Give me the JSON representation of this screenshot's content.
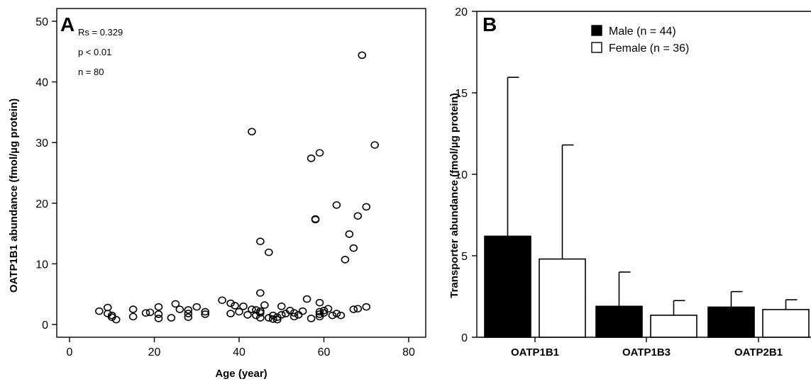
{
  "chart_data": [
    {
      "panel": "A",
      "type": "scatter",
      "xlabel": "Age (year)",
      "ylabel": "OATP1B1 abundance (fmol/µg protein)",
      "xlim": [
        0,
        80
      ],
      "ylim": [
        0,
        50
      ],
      "xticks": [
        "0",
        "20",
        "40",
        "60",
        "80"
      ],
      "yticks": [
        "0",
        "10",
        "20",
        "30",
        "40",
        "50"
      ],
      "annotations": [
        "Rs = 0.329",
        "p < 0.01",
        "n = 80"
      ],
      "points": [
        {
          "x": 7,
          "y": 2.2
        },
        {
          "x": 9,
          "y": 2.8
        },
        {
          "x": 9,
          "y": 1.8
        },
        {
          "x": 10,
          "y": 1.5
        },
        {
          "x": 10,
          "y": 1.2
        },
        {
          "x": 11,
          "y": 0.8
        },
        {
          "x": 15,
          "y": 2.5
        },
        {
          "x": 15,
          "y": 1.3
        },
        {
          "x": 19,
          "y": 2.0
        },
        {
          "x": 21,
          "y": 2.9
        },
        {
          "x": 21,
          "y": 1.7
        },
        {
          "x": 21,
          "y": 1.0
        },
        {
          "x": 24,
          "y": 1.1
        },
        {
          "x": 25,
          "y": 3.4
        },
        {
          "x": 26,
          "y": 2.5
        },
        {
          "x": 28,
          "y": 2.4
        },
        {
          "x": 28,
          "y": 1.8
        },
        {
          "x": 28,
          "y": 1.2
        },
        {
          "x": 30,
          "y": 2.9
        },
        {
          "x": 32,
          "y": 2.1
        },
        {
          "x": 32,
          "y": 1.7
        },
        {
          "x": 36,
          "y": 4.0
        },
        {
          "x": 38,
          "y": 3.5
        },
        {
          "x": 38,
          "y": 1.8
        },
        {
          "x": 39,
          "y": 3.1
        },
        {
          "x": 41,
          "y": 3.0
        },
        {
          "x": 42,
          "y": 1.6
        },
        {
          "x": 43,
          "y": 2.5
        },
        {
          "x": 43,
          "y": 31.8
        },
        {
          "x": 44,
          "y": 2.4
        },
        {
          "x": 44,
          "y": 1.5
        },
        {
          "x": 45,
          "y": 2.2
        },
        {
          "x": 45,
          "y": 1.9
        },
        {
          "x": 45,
          "y": 1.1
        },
        {
          "x": 45,
          "y": 5.2
        },
        {
          "x": 45,
          "y": 13.7
        },
        {
          "x": 46,
          "y": 3.2
        },
        {
          "x": 47,
          "y": 11.9
        },
        {
          "x": 47,
          "y": 1.1
        },
        {
          "x": 48,
          "y": 1.5
        },
        {
          "x": 48,
          "y": 0.9
        },
        {
          "x": 49,
          "y": 1.2
        },
        {
          "x": 49,
          "y": 0.8
        },
        {
          "x": 50,
          "y": 3.0
        },
        {
          "x": 50,
          "y": 1.6
        },
        {
          "x": 51,
          "y": 1.8
        },
        {
          "x": 52,
          "y": 2.3
        },
        {
          "x": 53,
          "y": 1.9
        },
        {
          "x": 53,
          "y": 1.3
        },
        {
          "x": 55,
          "y": 2.2
        },
        {
          "x": 56,
          "y": 4.2
        },
        {
          "x": 57,
          "y": 27.4
        },
        {
          "x": 57,
          "y": 1.0
        },
        {
          "x": 58,
          "y": 17.3
        },
        {
          "x": 58,
          "y": 17.4
        },
        {
          "x": 59,
          "y": 28.3
        },
        {
          "x": 59,
          "y": 3.6
        },
        {
          "x": 59,
          "y": 2.1
        },
        {
          "x": 59,
          "y": 1.7
        },
        {
          "x": 59,
          "y": 1.3
        },
        {
          "x": 60,
          "y": 2.3
        },
        {
          "x": 61,
          "y": 2.6
        },
        {
          "x": 62,
          "y": 1.5
        },
        {
          "x": 63,
          "y": 19.7
        },
        {
          "x": 63,
          "y": 1.8
        },
        {
          "x": 64,
          "y": 1.5
        },
        {
          "x": 65,
          "y": 10.7
        },
        {
          "x": 66,
          "y": 14.9
        },
        {
          "x": 67,
          "y": 12.6
        },
        {
          "x": 67,
          "y": 2.5
        },
        {
          "x": 68,
          "y": 17.9
        },
        {
          "x": 68,
          "y": 2.6
        },
        {
          "x": 69,
          "y": 44.4
        },
        {
          "x": 70,
          "y": 19.4
        },
        {
          "x": 70,
          "y": 2.9
        },
        {
          "x": 72,
          "y": 29.6
        },
        {
          "x": 18,
          "y": 1.9
        },
        {
          "x": 40,
          "y": 2.1
        },
        {
          "x": 54,
          "y": 1.6
        },
        {
          "x": 60,
          "y": 1.9
        }
      ]
    },
    {
      "panel": "B",
      "type": "bar",
      "ylabel": "Transporter abundance (fmol/µg protein)",
      "ylim": [
        0,
        20
      ],
      "yticks": [
        "0",
        "5",
        "10",
        "15",
        "20"
      ],
      "categories": [
        "OATP1B1",
        "OATP1B3",
        "OATP2B1"
      ],
      "series": [
        {
          "name": "Male (n = 44)",
          "color": "#000000",
          "values": [
            6.2,
            1.9,
            1.85
          ],
          "errors": [
            9.75,
            2.1,
            0.95
          ]
        },
        {
          "name": "Female (n = 36)",
          "color": "#ffffff",
          "values": [
            4.8,
            1.35,
            1.7
          ],
          "errors": [
            7.0,
            0.9,
            0.6
          ]
        }
      ]
    }
  ]
}
